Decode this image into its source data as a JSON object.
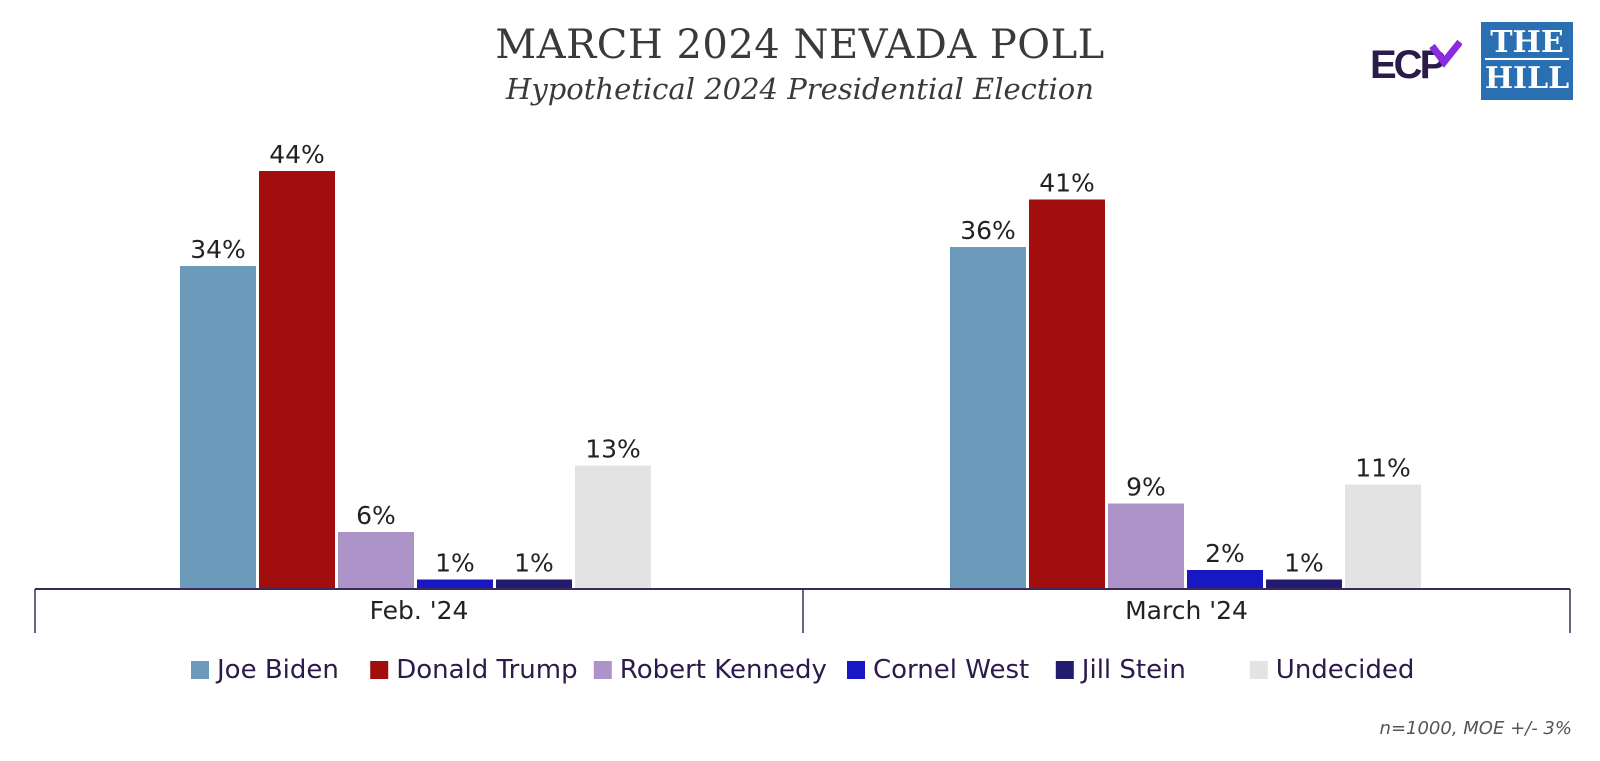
{
  "header": {
    "title": "MARCH 2024 NEVADA POLL",
    "subtitle": "Hypothetical 2024 Presidential Election"
  },
  "logos": {
    "ecp": "ECP",
    "hill_line1": "THE",
    "hill_line2": "HILL"
  },
  "footnote": "n=1000, MOE +/- 3%",
  "chart_data": {
    "type": "bar",
    "title": "MARCH 2024 NEVADA POLL",
    "subtitle": "Hypothetical 2024 Presidential Election",
    "categories": [
      "Feb. '24",
      "March '24"
    ],
    "series": [
      {
        "name": "Joe Biden",
        "color": "#6b9aba",
        "values": [
          34,
          36
        ]
      },
      {
        "name": "Donald Trump",
        "color": "#a20e0e",
        "values": [
          44,
          41
        ]
      },
      {
        "name": "Robert Kennedy",
        "color": "#ad94c8",
        "values": [
          6,
          9
        ]
      },
      {
        "name": "Cornel West",
        "color": "#1717c4",
        "values": [
          1,
          2
        ]
      },
      {
        "name": "Jill Stein",
        "color": "#231b6e",
        "values": [
          1,
          1
        ]
      },
      {
        "name": "Undecided",
        "color": "#e3e3e3",
        "values": [
          13,
          11
        ]
      }
    ],
    "value_suffix": "%",
    "ylim": [
      0,
      50
    ],
    "grid": false,
    "legend_position": "bottom",
    "data_labels": true
  }
}
